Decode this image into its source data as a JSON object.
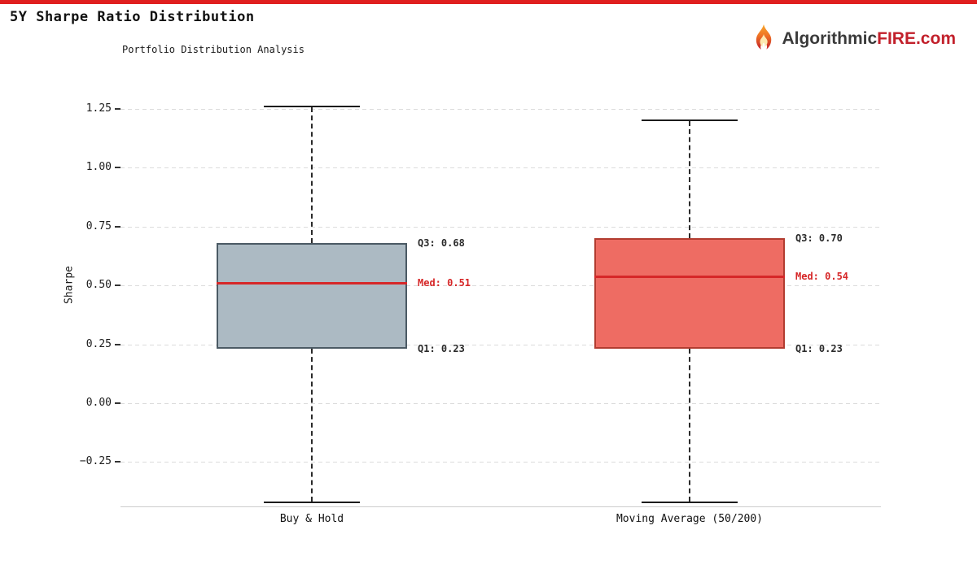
{
  "page": {
    "title": "5Y Sharpe Ratio Distribution",
    "accent_color": "#e01f1f"
  },
  "brand": {
    "prefix": "Algorithmic",
    "highlight": "FIRE.com",
    "prefix_color": "#3a3a3a",
    "highlight_color": "#c2202b",
    "flame_icon": "flame-icon"
  },
  "chart_data": {
    "type": "boxplot",
    "title": "Portfolio Distribution Analysis",
    "ylabel": "Sharpe",
    "ylim": [
      -0.44,
      1.33
    ],
    "grid": "horizontal-dashed",
    "yticks": [
      {
        "value": 1.25,
        "label": "1.25"
      },
      {
        "value": 1.0,
        "label": "1.00"
      },
      {
        "value": 0.75,
        "label": "0.75"
      },
      {
        "value": 0.5,
        "label": "0.50"
      },
      {
        "value": 0.25,
        "label": "0.25"
      },
      {
        "value": 0.0,
        "label": "0.00"
      },
      {
        "value": -0.25,
        "label": "−0.25"
      }
    ],
    "median_color": "#d62728",
    "annotation_color": "#2b2b2b",
    "series": [
      {
        "name": "Buy & Hold",
        "q1": 0.23,
        "median": 0.51,
        "q3": 0.68,
        "whisker_low": -0.42,
        "whisker_high": 1.26,
        "fill": "#acbac3",
        "border": "#4b5a64",
        "labels": {
          "q3": "Q3: 0.68",
          "med": "Med: 0.51",
          "q1": "Q1: 0.23"
        }
      },
      {
        "name": "Moving Average (50/200)",
        "q1": 0.23,
        "median": 0.54,
        "q3": 0.7,
        "whisker_low": -0.42,
        "whisker_high": 1.2,
        "fill": "#ee6c63",
        "border": "#b23c30",
        "labels": {
          "q3": "Q3: 0.70",
          "med": "Med: 0.54",
          "q1": "Q1: 0.23"
        }
      }
    ]
  }
}
